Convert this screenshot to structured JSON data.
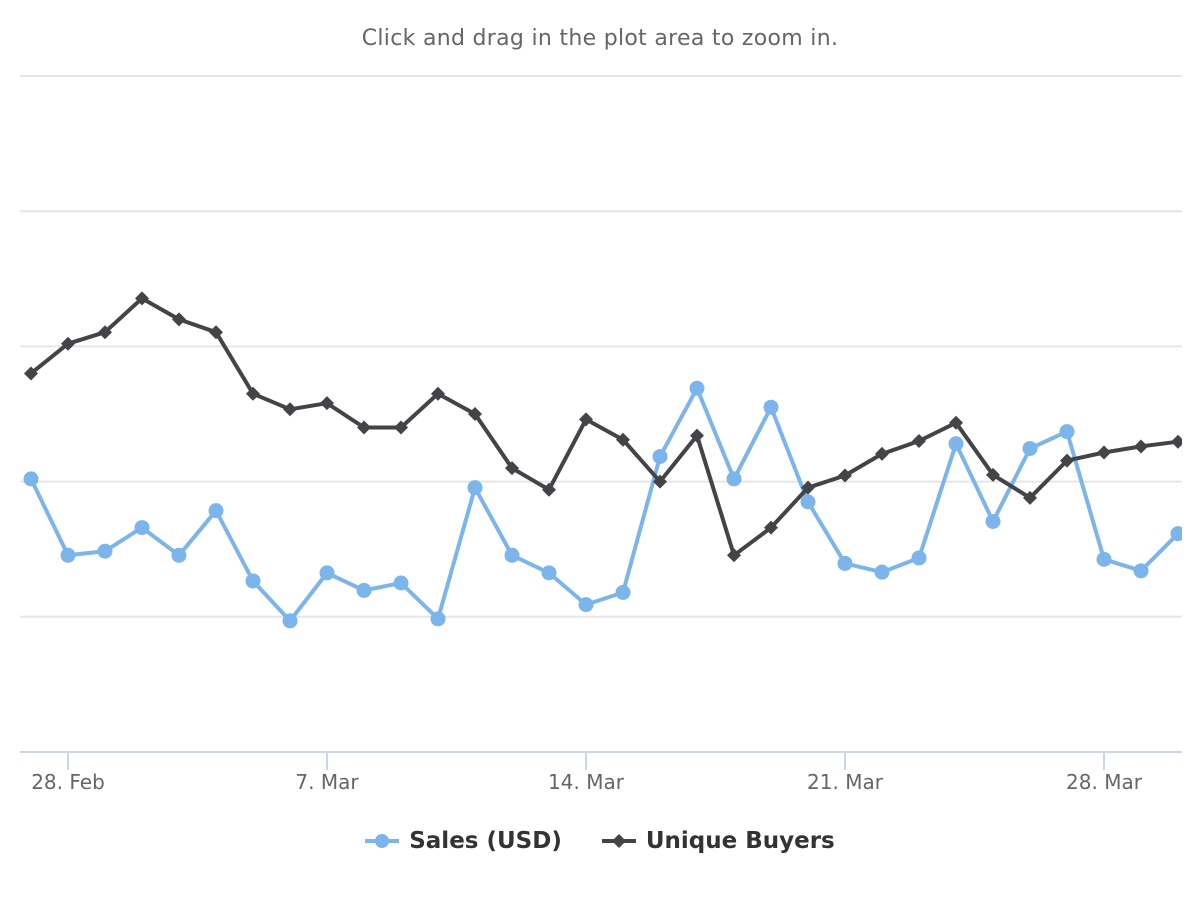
{
  "subtitle": "Click and drag in the plot area to zoom in.",
  "colors": {
    "sales": "#7cb5ec",
    "buyers": "#434348",
    "grid": "#e6e6e6",
    "axis": "#ccd6eb"
  },
  "chart_data": {
    "type": "line",
    "x_tick_labels": [
      "28. Feb",
      "7. Mar",
      "14. Mar",
      "21. Mar",
      "28. Mar"
    ],
    "x": [
      "2022-02-27",
      "2022-02-28",
      "2022-03-01",
      "2022-03-02",
      "2022-03-03",
      "2022-03-04",
      "2022-03-05",
      "2022-03-06",
      "2022-03-07",
      "2022-03-08",
      "2022-03-09",
      "2022-03-10",
      "2022-03-11",
      "2022-03-12",
      "2022-03-13",
      "2022-03-14",
      "2022-03-15",
      "2022-03-16",
      "2022-03-17",
      "2022-03-18",
      "2022-03-19",
      "2022-03-20",
      "2022-03-21",
      "2022-03-22",
      "2022-03-23",
      "2022-03-24",
      "2022-03-25",
      "2022-03-26",
      "2022-03-27",
      "2022-03-28",
      "2022-03-29",
      "2022-03-30"
    ],
    "series": [
      {
        "name": "Sales (USD)",
        "marker": "circle",
        "values": [
          8.04,
          6.91,
          6.97,
          7.32,
          6.91,
          7.57,
          6.53,
          5.94,
          6.65,
          6.39,
          6.5,
          5.97,
          7.91,
          6.91,
          6.65,
          6.18,
          6.36,
          8.37,
          9.38,
          8.04,
          9.1,
          7.7,
          6.79,
          6.66,
          6.87,
          8.56,
          7.41,
          8.49,
          8.74,
          6.85,
          6.68,
          7.23
        ]
      },
      {
        "name": "Unique Buyers",
        "marker": "diamond",
        "values": [
          9.6,
          10.04,
          10.21,
          10.71,
          10.4,
          10.21,
          9.3,
          9.07,
          9.16,
          8.8,
          8.8,
          9.3,
          9.0,
          8.2,
          7.88,
          8.92,
          8.62,
          8.0,
          8.68,
          6.91,
          7.32,
          7.91,
          8.09,
          8.41,
          8.6,
          8.87,
          8.1,
          7.76,
          8.31,
          8.43,
          8.52,
          8.59
        ]
      }
    ],
    "ylim": [
      4,
      14
    ],
    "y_gridlines": [
      4,
      6,
      8,
      10,
      12,
      14
    ],
    "grid": true,
    "legend_position": "bottom-center"
  }
}
